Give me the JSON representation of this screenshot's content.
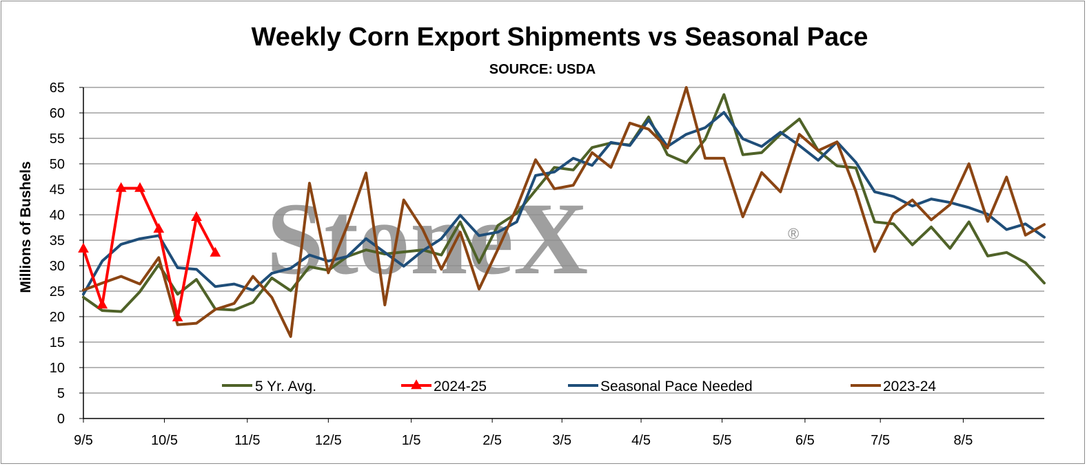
{
  "watermark": {
    "text": "StoneX",
    "registered": "®"
  },
  "chart_data": {
    "type": "line",
    "title": "Weekly Corn Export Shipments vs Seasonal Pace",
    "subtitle": "SOURCE: USDA",
    "ylabel": "Millions of Bushels",
    "xlabel": "",
    "ylim": [
      0,
      65
    ],
    "y_ticks": [
      "0",
      "5",
      "10",
      "15",
      "20",
      "25",
      "30",
      "35",
      "40",
      "45",
      "50",
      "55",
      "60",
      "65"
    ],
    "x_ticks": [
      "9/5",
      "10/5",
      "11/5",
      "12/5",
      "1/5",
      "2/5",
      "3/5",
      "4/5",
      "5/5",
      "6/5",
      "7/5",
      "8/5"
    ],
    "x_tick_week_index": [
      0,
      4.3,
      8.7,
      13,
      17.4,
      21.7,
      25.4,
      29.6,
      33.9,
      38.3,
      42.3,
      46.7
    ],
    "grid": "horizontal",
    "legend_position": "bottom-inside",
    "series": [
      {
        "name": "5 Yr. Avg.",
        "color": "#4f6228",
        "marker": "none",
        "values": [
          23.8,
          21.2,
          21.0,
          24.9,
          30.2,
          24.4,
          27.3,
          21.5,
          21.3,
          22.8,
          27.6,
          25.1,
          29.8,
          29.1,
          31.8,
          33.1,
          32.3,
          32.7,
          33.1,
          32.1,
          38.6,
          30.6,
          37.9,
          40.3,
          44.8,
          49.3,
          48.8,
          53.2,
          54.1,
          53.7,
          59.2,
          51.8,
          50.2,
          54.8,
          63.6,
          51.8,
          52.2,
          55.8,
          58.8,
          52.6,
          49.6,
          49.2,
          38.6,
          38.2,
          34.1,
          37.6,
          33.4,
          38.6,
          31.9,
          32.6,
          30.6,
          26.6
        ]
      },
      {
        "name": "2024-25",
        "color": "#ff0000",
        "marker": "triangle",
        "values": [
          33.3,
          22.3,
          45.2,
          45.2,
          37.2,
          19.8,
          39.5,
          32.5
        ]
      },
      {
        "name": "Seasonal Pace Needed",
        "color": "#1f4e79",
        "marker": "none",
        "values": [
          24.4,
          30.9,
          34.2,
          35.3,
          35.9,
          29.6,
          29.3,
          25.9,
          26.4,
          25.2,
          28.5,
          29.5,
          32.1,
          30.9,
          31.8,
          35.3,
          32.6,
          29.9,
          32.9,
          35.3,
          39.9,
          35.9,
          36.6,
          38.6,
          47.7,
          48.4,
          51.1,
          49.7,
          54.2,
          53.6,
          58.6,
          53.4,
          55.8,
          57.1,
          60.1,
          54.9,
          53.4,
          56.2,
          53.6,
          50.7,
          54.3,
          50.3,
          44.5,
          43.6,
          41.7,
          43.1,
          42.4,
          41.4,
          40.1,
          37.1,
          38.2,
          35.6
        ]
      },
      {
        "name": "2023-24",
        "color": "#8b4513",
        "marker": "none",
        "values": [
          25.2,
          26.6,
          27.9,
          26.4,
          31.6,
          18.4,
          18.7,
          21.4,
          22.6,
          27.9,
          23.8,
          16.1,
          46.2,
          28.6,
          37.8,
          48.2,
          22.3,
          42.9,
          37.2,
          29.3,
          36.6,
          25.4,
          33.2,
          41.4,
          50.8,
          45.1,
          45.8,
          52.2,
          49.3,
          58.0,
          56.8,
          53.1,
          65.0,
          51.1,
          51.1,
          39.6,
          48.3,
          44.5,
          55.8,
          52.6,
          54.3,
          44.6,
          32.8,
          40.2,
          42.9,
          39.0,
          42.0,
          50.0,
          38.7,
          47.4,
          36.0,
          38.1
        ]
      }
    ]
  }
}
